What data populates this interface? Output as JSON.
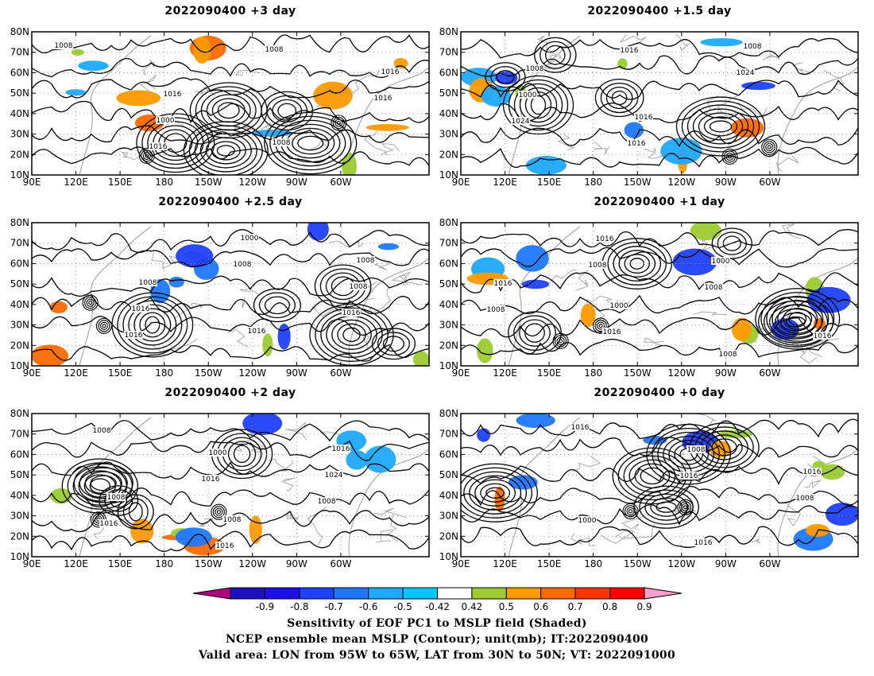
{
  "panels": [
    {
      "title": "2022090400 +3 day"
    },
    {
      "title": "2022090400 +1.5 day"
    },
    {
      "title": "2022090400 +2.5 day"
    },
    {
      "title": "2022090400 +1 day"
    },
    {
      "title": "2022090400 +2 day"
    },
    {
      "title": "2022090400 +0 day"
    }
  ],
  "axes": {
    "lon_ticks": [
      "90E",
      "120E",
      "150E",
      "180",
      "150W",
      "120W",
      "90W",
      "60W"
    ],
    "lat_ticks": [
      "10N",
      "20N",
      "30N",
      "40N",
      "50N",
      "60N",
      "70N",
      "80N"
    ]
  },
  "contour_labels": [
    [
      "1008",
      "1016",
      "1008",
      "1016",
      "1000",
      "1008",
      "1016",
      "1016"
    ],
    [
      "1008",
      "1016",
      "1008",
      "1000",
      "1016",
      "1024",
      "1024",
      "1016"
    ],
    [
      "1008",
      "1016",
      "1008",
      "1016",
      "1000",
      "1008",
      "1016",
      "1008",
      "1016"
    ],
    [
      "1000",
      "1008",
      "1016",
      "1016",
      "1000",
      "1008",
      "1016",
      "1008",
      "1016",
      "1008"
    ],
    [
      "1008",
      "1016",
      "1008",
      "1016",
      "1024",
      "1016",
      "1000",
      "1008",
      "1008",
      "1016"
    ],
    [
      "1016",
      "1016",
      "1000",
      "1008",
      "1008",
      "1016",
      "1016"
    ]
  ],
  "colorbar": {
    "labels": [
      "-0.9",
      "-0.8",
      "-0.7",
      "-0.6",
      "-0.5",
      "-0.42",
      "0.42",
      "0.5",
      "0.6",
      "0.7",
      "0.8",
      "0.9"
    ],
    "colors": [
      "#b0007f",
      "#1c0fbe",
      "#1c0fe8",
      "#1e40ff",
      "#1e78ff",
      "#1eaaff",
      "#00c8ff",
      "#ffffff",
      "#9ccc32",
      "#ff9a00",
      "#ff6a00",
      "#ff3300",
      "#ff0000",
      "#ff9ecc"
    ]
  },
  "caption": [
    "Sensitivity of EOF PC1 to MSLP field (Shaded)",
    "NCEP ensemble mean MSLP (Contour); unit(mb); IT:2022090400",
    "Valid area: LON from 95W to 65W, LAT from 30N to 50N; VT: 2022091000"
  ]
}
